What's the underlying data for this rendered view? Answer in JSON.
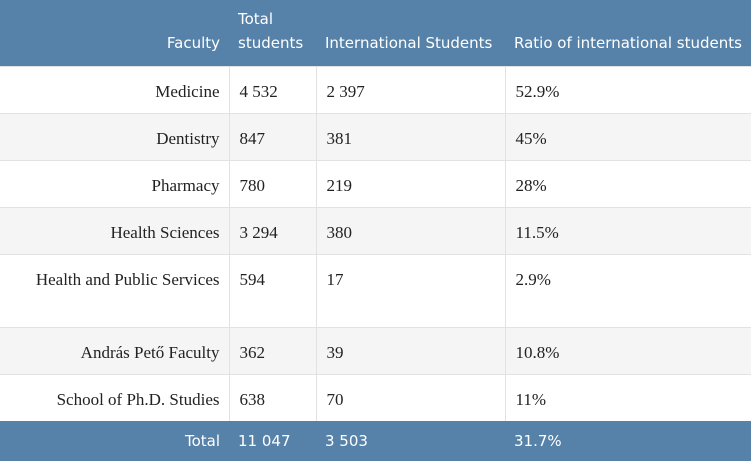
{
  "table": {
    "headers": {
      "faculty": "Faculty",
      "total": "Total students",
      "international": "International Students",
      "ratio": "Ratio of international students"
    },
    "rows": [
      {
        "faculty": "Medicine",
        "total": "4 532",
        "international": "2 397",
        "ratio": "52.9%"
      },
      {
        "faculty": "Dentistry",
        "total": "847",
        "international": "381",
        "ratio": "45%"
      },
      {
        "faculty": "Pharmacy",
        "total": "780",
        "international": "219",
        "ratio": "28%"
      },
      {
        "faculty": "Health Sciences",
        "total": "3 294",
        "international": "380",
        "ratio": "11.5%"
      },
      {
        "faculty": "Health and Public Services",
        "total": "594",
        "international": "17",
        "ratio": "2.9%"
      },
      {
        "faculty": "András Pető Faculty",
        "total": "362",
        "international": "39",
        "ratio": "10.8%"
      },
      {
        "faculty": "School of Ph.D. Studies",
        "total": "638",
        "international": "70",
        "ratio": "11%"
      }
    ],
    "footer": {
      "faculty": "Total",
      "total": "11 047",
      "international": "3 503",
      "ratio": "31.7%"
    },
    "colors": {
      "header_background": "#5682a9",
      "header_text": "#ffffff",
      "row_alt_background": "#f5f5f5"
    }
  }
}
